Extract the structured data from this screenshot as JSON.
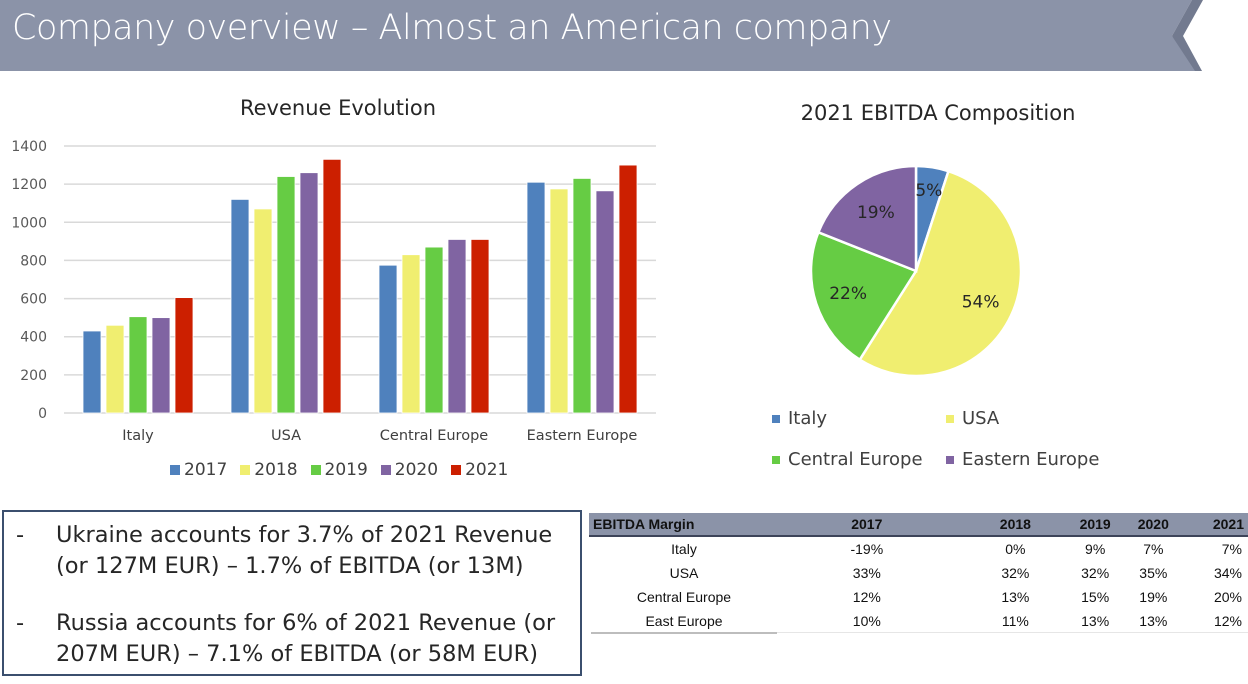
{
  "header": {
    "title": "Company overview – Almost an American company",
    "colors": {
      "banner": "#8b93a8",
      "chevron": "#727a8f"
    }
  },
  "notes": [
    {
      "bullet": "-",
      "text": "Ukraine accounts for 3.7% of 2021 Revenue (or 127M EUR) – 1.7% of EBITDA (or 13M)"
    },
    {
      "bullet": "-",
      "text": "Russia accounts for 6% of 2021 Revenue (or 207M EUR) – 7.1% of EBITDA (or 58M EUR)"
    }
  ],
  "ebitda_table": {
    "headers": [
      "EBITDA Margin",
      "2017",
      "2018",
      "2019",
      "2020",
      "2021"
    ],
    "rows": [
      [
        "Italy",
        "-19%",
        "0%",
        "9%",
        "7%",
        "7%"
      ],
      [
        "USA",
        "33%",
        "32%",
        "32%",
        "35%",
        "34%"
      ],
      [
        "Central Europe",
        "12%",
        "13%",
        "15%",
        "19%",
        "20%"
      ],
      [
        "East Europe",
        "10%",
        "11%",
        "13%",
        "13%",
        "12%"
      ]
    ]
  },
  "chart_data": [
    {
      "type": "bar",
      "title": "Revenue Evolution",
      "xlabel": "",
      "ylabel": "",
      "categories": [
        "Italy",
        "USA",
        "Central Europe",
        "Eastern Europe"
      ],
      "ylim": [
        0,
        1400
      ],
      "yticks": [
        0,
        200,
        400,
        600,
        800,
        1000,
        1200,
        1400
      ],
      "grid": true,
      "legend_position": "bottom",
      "series": [
        {
          "name": "2017",
          "color": "#4f81bd",
          "values": [
            430,
            1120,
            775,
            1210
          ]
        },
        {
          "name": "2018",
          "color": "#f0ee70",
          "values": [
            460,
            1070,
            830,
            1175
          ]
        },
        {
          "name": "2019",
          "color": "#66cc44",
          "values": [
            505,
            1240,
            870,
            1230
          ]
        },
        {
          "name": "2020",
          "color": "#8064a2",
          "values": [
            500,
            1260,
            910,
            1165
          ]
        },
        {
          "name": "2021",
          "color": "#cc1f00",
          "values": [
            605,
            1330,
            910,
            1300
          ]
        }
      ]
    },
    {
      "type": "pie",
      "title": "2021 EBITDA Composition",
      "legend_position": "bottom",
      "slices": [
        {
          "label": "Italy",
          "value": 5,
          "display": "5%",
          "color": "#4f81bd"
        },
        {
          "label": "USA",
          "value": 54,
          "display": "54%",
          "color": "#f0ee70"
        },
        {
          "label": "Central Europe",
          "value": 22,
          "display": "22%",
          "color": "#66cc44"
        },
        {
          "label": "Eastern Europe",
          "value": 19,
          "display": "19%",
          "color": "#8064a2"
        }
      ]
    }
  ]
}
